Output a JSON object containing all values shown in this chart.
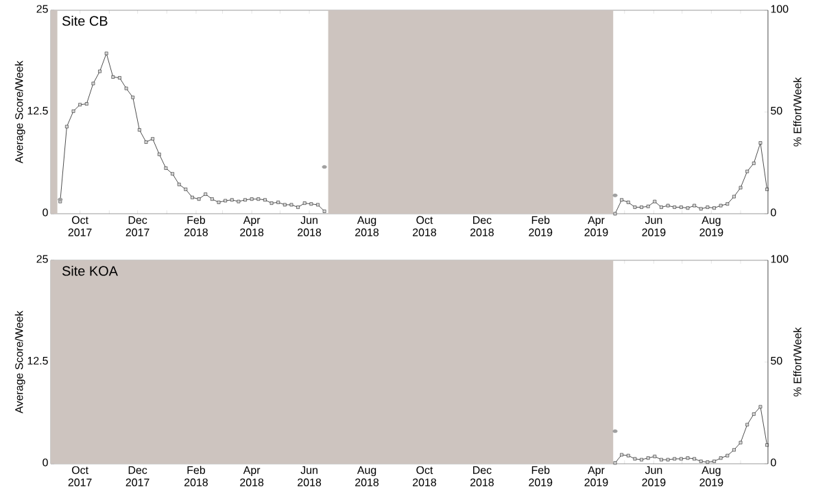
{
  "chart_data": [
    {
      "type": "line",
      "title": "Site CB",
      "ylabel": "Average Score/Week",
      "y2label": "% Effort/Week",
      "xlim": [
        "2017-08-31",
        "2019-09-30"
      ],
      "xticks": [
        {
          "value": "2017-10",
          "label": "Oct 2017"
        },
        {
          "value": "2017-11",
          "label": null
        },
        {
          "value": "2017-12",
          "label": "Dec 2017"
        },
        {
          "value": "2018-01",
          "label": null
        },
        {
          "value": "2018-02",
          "label": "Feb 2018"
        },
        {
          "value": "2018-03",
          "label": null
        },
        {
          "value": "2018-04",
          "label": "Apr 2018"
        },
        {
          "value": "2018-05",
          "label": null
        },
        {
          "value": "2018-06",
          "label": "Jun 2018"
        },
        {
          "value": "2018-07",
          "label": null
        },
        {
          "value": "2018-08",
          "label": "Aug 2018"
        },
        {
          "value": "2018-09",
          "label": null
        },
        {
          "value": "2018-10",
          "label": "Oct 2018"
        },
        {
          "value": "2018-11",
          "label": null
        },
        {
          "value": "2018-12",
          "label": "Dec 2018"
        },
        {
          "value": "2019-01",
          "label": null
        },
        {
          "value": "2019-02",
          "label": "Feb 2019"
        },
        {
          "value": "2019-03",
          "label": null
        },
        {
          "value": "2019-04",
          "label": "Apr 2019"
        },
        {
          "value": "2019-05",
          "label": null
        },
        {
          "value": "2019-06",
          "label": "Jun 2019"
        },
        {
          "value": "2019-07",
          "label": null
        },
        {
          "value": "2019-08",
          "label": "Aug 2019"
        },
        {
          "value": "2019-09",
          "label": null
        }
      ],
      "ylim": [
        0,
        25
      ],
      "yticks": [
        0,
        12.5,
        25
      ],
      "y2lim": [
        0,
        100
      ],
      "y2ticks": [
        0,
        50,
        100
      ],
      "bands": [
        {
          "axis": "x",
          "from": "2017-08-31",
          "to": "2017-09-07",
          "color": "#cdc4bf"
        },
        {
          "axis": "x",
          "from": "2018-06-21",
          "to": "2019-04-19",
          "color": "#cdc4bf"
        }
      ],
      "series": [
        {
          "type": "line",
          "color": "#000000",
          "marker": "square",
          "x": [
            "2017-09-10",
            "2017-09-17",
            "2017-09-24",
            "2017-10-01",
            "2017-10-08",
            "2017-10-15",
            "2017-10-22",
            "2017-10-29",
            "2017-11-05",
            "2017-11-12",
            "2017-11-19",
            "2017-11-26",
            "2017-12-03",
            "2017-12-10",
            "2017-12-17",
            "2017-12-24",
            "2017-12-31",
            "2018-01-07",
            "2018-01-14",
            "2018-01-21",
            "2018-01-28",
            "2018-02-04",
            "2018-02-11",
            "2018-02-18",
            "2018-02-25",
            "2018-03-04",
            "2018-03-11",
            "2018-03-18",
            "2018-03-25",
            "2018-04-01",
            "2018-04-08",
            "2018-04-15",
            "2018-04-22",
            "2018-04-29",
            "2018-05-06",
            "2018-05-13",
            "2018-05-20",
            "2018-05-27",
            "2018-06-03",
            "2018-06-10",
            "2018-06-17"
          ],
          "values": [
            1.5,
            10.7,
            12.6,
            13.4,
            13.5,
            16.0,
            17.5,
            19.7,
            16.8,
            16.7,
            15.4,
            14.3,
            10.3,
            8.8,
            9.2,
            7.3,
            5.6,
            4.9,
            3.6,
            3.0,
            2.0,
            1.8,
            2.4,
            1.8,
            1.4,
            1.6,
            1.7,
            1.5,
            1.7,
            1.8,
            1.8,
            1.7,
            1.3,
            1.4,
            1.1,
            1.1,
            0.8,
            1.3,
            1.2,
            1.1,
            0.3
          ]
        },
        {
          "type": "line",
          "color": "#000000",
          "marker": "square",
          "x": [
            "2019-04-21",
            "2019-04-28",
            "2019-05-05",
            "2019-05-12",
            "2019-05-19",
            "2019-05-26",
            "2019-06-02",
            "2019-06-09",
            "2019-06-16",
            "2019-06-23",
            "2019-06-30",
            "2019-07-07",
            "2019-07-14",
            "2019-07-21",
            "2019-07-28",
            "2019-08-04",
            "2019-08-11",
            "2019-08-18",
            "2019-08-25",
            "2019-09-01",
            "2019-09-08",
            "2019-09-15",
            "2019-09-22",
            "2019-09-29"
          ],
          "values": [
            0,
            1.7,
            1.4,
            0.8,
            0.8,
            0.9,
            1.5,
            0.8,
            1.0,
            0.8,
            0.8,
            0.7,
            1.0,
            0.6,
            0.8,
            0.7,
            1.0,
            1.2,
            2.1,
            3.2,
            5.2,
            6.2,
            8.7,
            3.0
          ]
        },
        {
          "type": "scatter",
          "axis": "y2",
          "color": "#a0a0a0",
          "marker": "circle",
          "x": [
            "2017-09-10",
            "2018-06-17",
            "2019-04-21"
          ],
          "values": [
            7,
            23,
            9
          ]
        }
      ]
    },
    {
      "type": "line",
      "title": "Site KOA",
      "ylabel": "Average Score/Week",
      "y2label": "% Effort/Week",
      "xlim": [
        "2017-08-31",
        "2019-09-30"
      ],
      "xticks": [
        {
          "value": "2017-10",
          "label": "Oct 2017"
        },
        {
          "value": "2017-11",
          "label": null
        },
        {
          "value": "2017-12",
          "label": "Dec 2017"
        },
        {
          "value": "2018-01",
          "label": null
        },
        {
          "value": "2018-02",
          "label": "Feb 2018"
        },
        {
          "value": "2018-03",
          "label": null
        },
        {
          "value": "2018-04",
          "label": "Apr 2018"
        },
        {
          "value": "2018-05",
          "label": null
        },
        {
          "value": "2018-06",
          "label": "Jun 2018"
        },
        {
          "value": "2018-07",
          "label": null
        },
        {
          "value": "2018-08",
          "label": "Aug 2018"
        },
        {
          "value": "2018-09",
          "label": null
        },
        {
          "value": "2018-10",
          "label": "Oct 2018"
        },
        {
          "value": "2018-11",
          "label": null
        },
        {
          "value": "2018-12",
          "label": "Dec 2018"
        },
        {
          "value": "2019-01",
          "label": null
        },
        {
          "value": "2019-02",
          "label": "Feb 2019"
        },
        {
          "value": "2019-03",
          "label": null
        },
        {
          "value": "2019-04",
          "label": "Apr 2019"
        },
        {
          "value": "2019-05",
          "label": null
        },
        {
          "value": "2019-06",
          "label": "Jun 2019"
        },
        {
          "value": "2019-07",
          "label": null
        },
        {
          "value": "2019-08",
          "label": "Aug 2019"
        },
        {
          "value": "2019-09",
          "label": null
        }
      ],
      "ylim": [
        0,
        25
      ],
      "yticks": [
        0,
        12.5,
        25
      ],
      "y2lim": [
        0,
        100
      ],
      "y2ticks": [
        0,
        50,
        100
      ],
      "bands": [
        {
          "axis": "x",
          "from": "2017-08-31",
          "to": "2019-04-19",
          "color": "#cdc4bf"
        }
      ],
      "series": [
        {
          "type": "line",
          "color": "#000000",
          "marker": "square",
          "x": [
            "2019-04-21",
            "2019-04-28",
            "2019-05-05",
            "2019-05-12",
            "2019-05-19",
            "2019-05-26",
            "2019-06-02",
            "2019-06-09",
            "2019-06-16",
            "2019-06-23",
            "2019-06-30",
            "2019-07-07",
            "2019-07-14",
            "2019-07-21",
            "2019-07-28",
            "2019-08-04",
            "2019-08-11",
            "2019-08-18",
            "2019-08-25",
            "2019-09-01",
            "2019-09-08",
            "2019-09-15",
            "2019-09-22",
            "2019-09-29"
          ],
          "values": [
            0.1,
            1.1,
            1.0,
            0.6,
            0.5,
            0.7,
            0.9,
            0.5,
            0.5,
            0.6,
            0.6,
            0.7,
            0.6,
            0.3,
            0.2,
            0.3,
            0.7,
            1.0,
            1.7,
            2.6,
            4.8,
            6.1,
            7.0,
            2.3
          ]
        },
        {
          "type": "scatter",
          "axis": "y2",
          "color": "#a0a0a0",
          "marker": "circle",
          "x": [
            "2019-04-21"
          ],
          "values": [
            16
          ]
        }
      ]
    }
  ]
}
